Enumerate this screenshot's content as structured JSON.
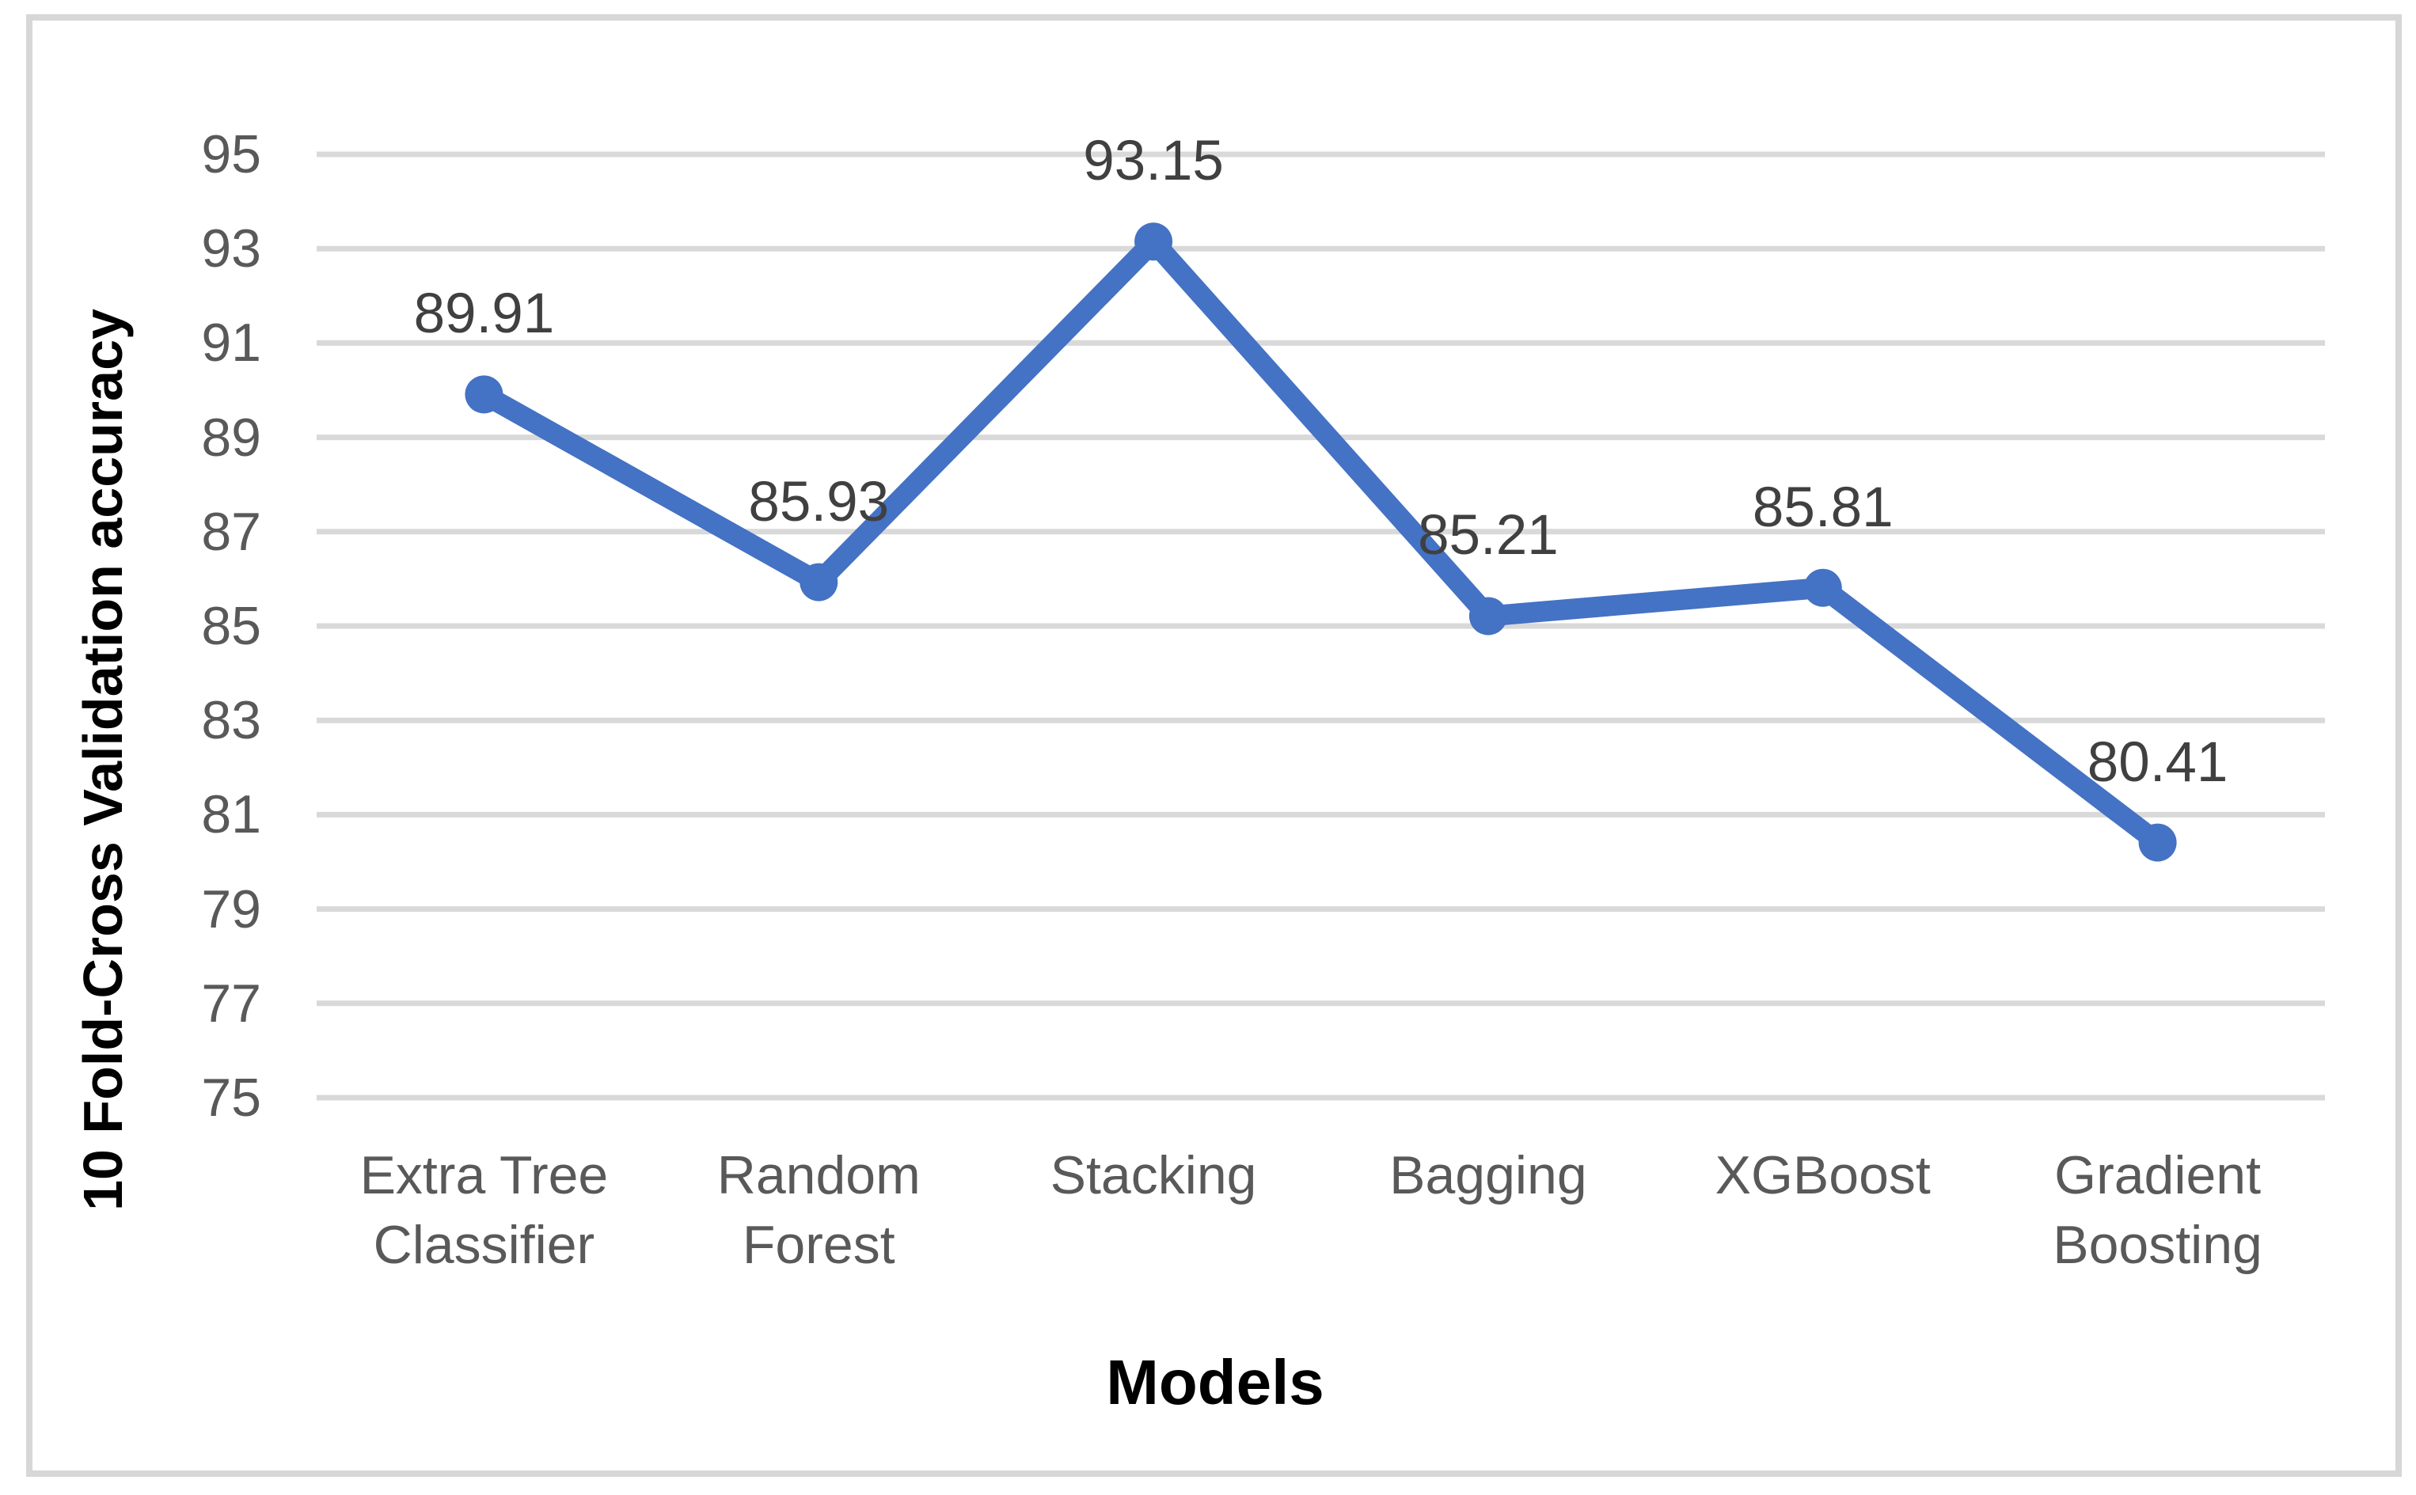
{
  "figure": {
    "background": "#ffffff",
    "border_color": "#d7d7d7"
  },
  "chart_data": {
    "type": "line",
    "title": "",
    "xlabel": "Models",
    "ylabel": "10 Fold-Cross Validation accuracy",
    "categories": [
      "Extra Tree\nClassifier",
      "Random\nForest",
      "Stacking",
      "Bagging",
      "XGBoost",
      "Gradient\nBoosting"
    ],
    "series": [
      {
        "name": "10 Fold-Cross Validation accuracy",
        "values": [
          89.91,
          85.93,
          93.15,
          85.21,
          85.81,
          80.41
        ],
        "color": "#4472c4",
        "marker": "circle"
      }
    ],
    "data_labels": [
      "89.91",
      "85.93",
      "93.15",
      "85.21",
      "85.81",
      "80.41"
    ],
    "ylim": [
      75,
      95
    ],
    "ytick_step": 2,
    "ytick_labels": [
      "95",
      "93",
      "91",
      "89",
      "87",
      "85",
      "83",
      "81",
      "79",
      "77",
      "75"
    ],
    "grid": "horizontal",
    "gridline_color": "#d9d9d9",
    "tick_color": "#595959",
    "data_label_color": "#404040",
    "axis_title_color": "#000000",
    "legend": "none"
  }
}
